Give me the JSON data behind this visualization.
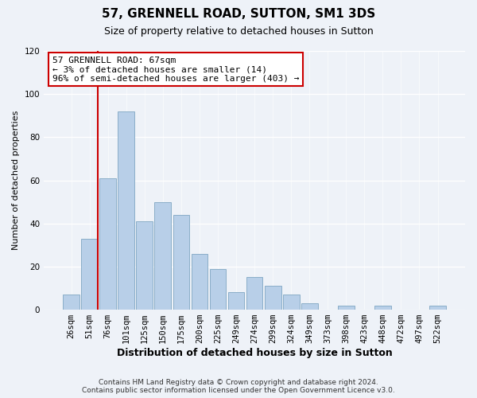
{
  "title": "57, GRENNELL ROAD, SUTTON, SM1 3DS",
  "subtitle": "Size of property relative to detached houses in Sutton",
  "xlabel": "Distribution of detached houses by size in Sutton",
  "ylabel": "Number of detached properties",
  "bar_labels": [
    "26sqm",
    "51sqm",
    "76sqm",
    "101sqm",
    "125sqm",
    "150sqm",
    "175sqm",
    "200sqm",
    "225sqm",
    "249sqm",
    "274sqm",
    "299sqm",
    "324sqm",
    "349sqm",
    "373sqm",
    "398sqm",
    "423sqm",
    "448sqm",
    "472sqm",
    "497sqm",
    "522sqm"
  ],
  "bar_heights": [
    7,
    33,
    61,
    92,
    41,
    50,
    44,
    26,
    19,
    8,
    15,
    11,
    7,
    3,
    0,
    2,
    0,
    2,
    0,
    0,
    2
  ],
  "bar_color": "#b8cfe8",
  "bar_edge_color": "#8aaec8",
  "ylim": [
    0,
    120
  ],
  "yticks": [
    0,
    20,
    40,
    60,
    80,
    100,
    120
  ],
  "property_line_color": "#cc0000",
  "annotation_line1": "57 GRENNELL ROAD: 67sqm",
  "annotation_line2": "← 3% of detached houses are smaller (14)",
  "annotation_line3": "96% of semi-detached houses are larger (403) →",
  "annotation_box_color": "#ffffff",
  "annotation_box_edge_color": "#cc0000",
  "footer_line1": "Contains HM Land Registry data © Crown copyright and database right 2024.",
  "footer_line2": "Contains public sector information licensed under the Open Government Licence v3.0.",
  "background_color": "#eef2f8",
  "title_fontsize": 11,
  "subtitle_fontsize": 9,
  "xlabel_fontsize": 9,
  "ylabel_fontsize": 8,
  "tick_fontsize": 7.5,
  "footer_fontsize": 6.5,
  "annotation_fontsize": 8
}
